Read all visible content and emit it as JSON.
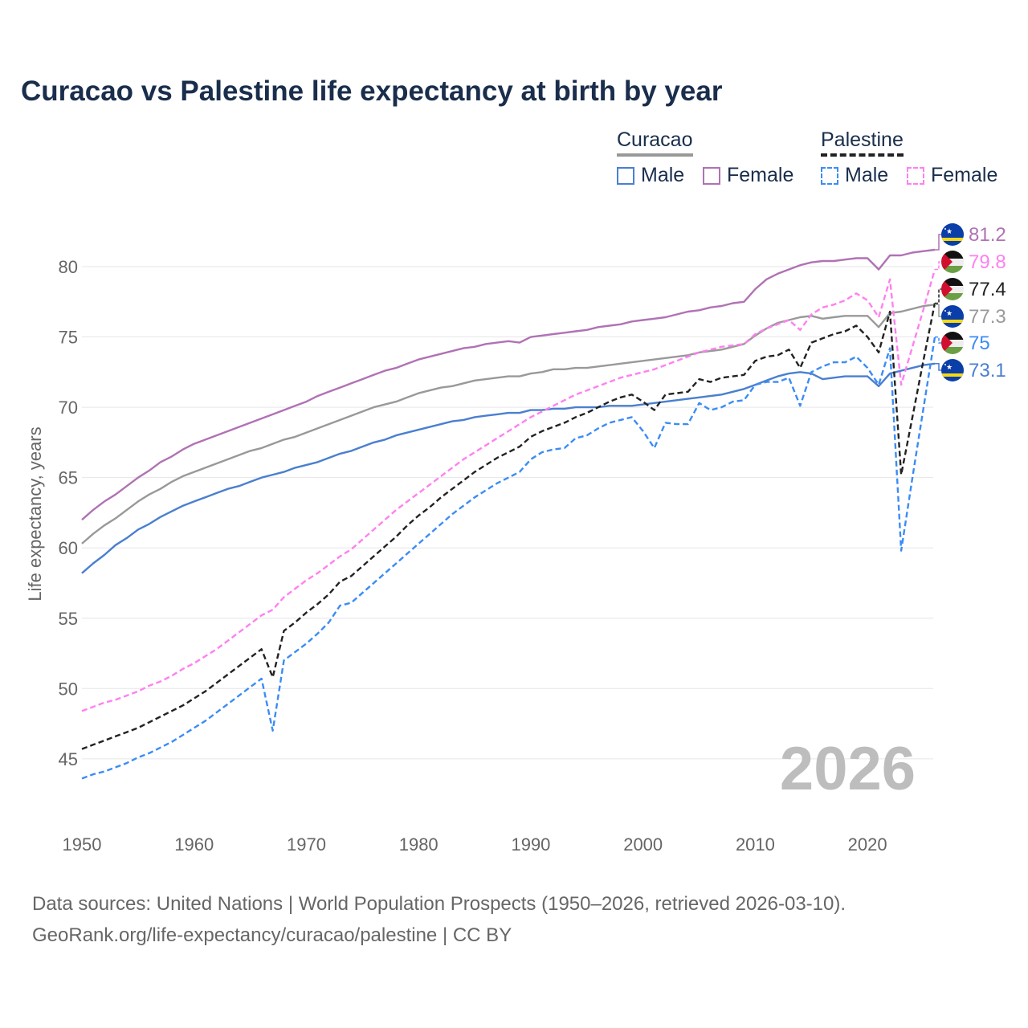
{
  "title": "Curacao vs Palestine life expectancy at birth by year",
  "legend": {
    "groups": [
      {
        "name": "Curacao",
        "color": "#999999",
        "items": [
          {
            "label": "Male",
            "color": "#4a7fd0"
          },
          {
            "label": "Female",
            "color": "#b072b4"
          }
        ]
      },
      {
        "name": "Palestine",
        "color": "#222222",
        "items": [
          {
            "label": "Male",
            "color": "#3b8cf5"
          },
          {
            "label": "Female",
            "color": "#ff80f0"
          }
        ]
      }
    ]
  },
  "footer": {
    "line1": "Data sources: United Nations | World Population Prospects (1950–2026, retrieved 2026-03-10).",
    "line2": "GeoRank.org/life-expectancy/curacao/palestine | CC BY"
  },
  "chart_data": {
    "type": "line",
    "title": "Curacao vs Palestine life expectancy at birth by year",
    "xlabel": "",
    "ylabel": "Life expectancy, years",
    "xlim": [
      1950,
      2026
    ],
    "ylim": [
      42,
      83
    ],
    "grid": true,
    "legend_position": "top-right",
    "current_year_label": "2026",
    "x_ticks": [
      "1950",
      "1960",
      "1970",
      "1980",
      "1990",
      "2000",
      "2010",
      "2020"
    ],
    "y_ticks": [
      "45",
      "50",
      "55",
      "60",
      "65",
      "70",
      "75",
      "80"
    ],
    "x_start": 1950,
    "series": [
      {
        "name": "Curacao Female",
        "color": "#b072b4",
        "dashed": false,
        "flag": "curacao-flag",
        "end_label": "81.2",
        "values": [
          62.0,
          62.7,
          63.3,
          63.8,
          64.4,
          65.0,
          65.5,
          66.1,
          66.5,
          67.0,
          67.4,
          67.7,
          68.0,
          68.3,
          68.6,
          68.9,
          69.2,
          69.5,
          69.8,
          70.1,
          70.4,
          70.8,
          71.1,
          71.4,
          71.7,
          72.0,
          72.3,
          72.6,
          72.8,
          73.1,
          73.4,
          73.6,
          73.8,
          74.0,
          74.2,
          74.3,
          74.5,
          74.6,
          74.7,
          74.6,
          75.0,
          75.1,
          75.2,
          75.3,
          75.4,
          75.5,
          75.7,
          75.8,
          75.9,
          76.1,
          76.2,
          76.3,
          76.4,
          76.6,
          76.8,
          76.9,
          77.1,
          77.2,
          77.4,
          77.5,
          78.4,
          79.1,
          79.5,
          79.8,
          80.1,
          80.3,
          80.4,
          80.4,
          80.5,
          80.6,
          80.6,
          79.8,
          80.8,
          80.8,
          81.0,
          81.1,
          81.2
        ]
      },
      {
        "name": "Palestine Female",
        "color": "#ff80f0",
        "dashed": true,
        "flag": "palestine-flag",
        "end_label": "79.8",
        "values": [
          48.4,
          48.7,
          49.0,
          49.2,
          49.5,
          49.8,
          50.2,
          50.5,
          50.9,
          51.4,
          51.8,
          52.3,
          52.8,
          53.4,
          54.0,
          54.6,
          55.2,
          55.6,
          56.5,
          57.1,
          57.7,
          58.2,
          58.8,
          59.4,
          59.9,
          60.6,
          61.3,
          62.0,
          62.7,
          63.3,
          63.9,
          64.5,
          65.1,
          65.7,
          66.3,
          66.8,
          67.3,
          67.8,
          68.3,
          68.8,
          69.3,
          69.7,
          70.1,
          70.5,
          70.9,
          71.2,
          71.5,
          71.8,
          72.1,
          72.3,
          72.5,
          72.7,
          73.0,
          73.3,
          73.6,
          73.9,
          74.1,
          74.3,
          74.4,
          74.5,
          75.2,
          75.6,
          75.9,
          76.2,
          75.5,
          76.6,
          77.1,
          77.3,
          77.6,
          78.1,
          77.6,
          76.4,
          79.1,
          71.6,
          74.3,
          77.0,
          79.8
        ]
      },
      {
        "name": "Palestine",
        "color": "#222222",
        "dashed": true,
        "flag": "palestine-flag",
        "end_label": "77.4",
        "values": [
          45.7,
          46.0,
          46.3,
          46.6,
          46.9,
          47.2,
          47.6,
          48.0,
          48.4,
          48.8,
          49.3,
          49.8,
          50.4,
          51.0,
          51.6,
          52.2,
          52.8,
          50.8,
          54.1,
          54.7,
          55.4,
          56.0,
          56.7,
          57.6,
          58.0,
          58.7,
          59.4,
          60.1,
          60.8,
          61.6,
          62.3,
          62.9,
          63.6,
          64.2,
          64.8,
          65.4,
          65.9,
          66.4,
          66.8,
          67.2,
          67.9,
          68.3,
          68.6,
          68.9,
          69.3,
          69.6,
          70.0,
          70.4,
          70.7,
          70.9,
          70.4,
          69.8,
          70.9,
          71.0,
          71.1,
          72.0,
          71.8,
          72.1,
          72.2,
          72.3,
          73.3,
          73.6,
          73.7,
          74.1,
          72.8,
          74.6,
          74.9,
          75.2,
          75.4,
          75.8,
          75.0,
          73.9,
          76.8,
          65.2,
          69.3,
          73.4,
          77.4
        ]
      },
      {
        "name": "Curacao",
        "color": "#999999",
        "dashed": false,
        "flag": "curacao-flag",
        "end_label": "77.3",
        "values": [
          60.3,
          61.0,
          61.6,
          62.1,
          62.7,
          63.3,
          63.8,
          64.2,
          64.7,
          65.1,
          65.4,
          65.7,
          66.0,
          66.3,
          66.6,
          66.9,
          67.1,
          67.4,
          67.7,
          67.9,
          68.2,
          68.5,
          68.8,
          69.1,
          69.4,
          69.7,
          70.0,
          70.2,
          70.4,
          70.7,
          71.0,
          71.2,
          71.4,
          71.5,
          71.7,
          71.9,
          72.0,
          72.1,
          72.2,
          72.2,
          72.4,
          72.5,
          72.7,
          72.7,
          72.8,
          72.8,
          72.9,
          73.0,
          73.1,
          73.2,
          73.3,
          73.4,
          73.5,
          73.6,
          73.7,
          73.9,
          74.0,
          74.1,
          74.3,
          74.5,
          75.1,
          75.6,
          76.0,
          76.2,
          76.4,
          76.5,
          76.3,
          76.4,
          76.5,
          76.5,
          76.5,
          75.7,
          76.7,
          76.8,
          77.0,
          77.2,
          77.3
        ]
      },
      {
        "name": "Palestine Male",
        "color": "#3b8cf5",
        "dashed": true,
        "flag": "palestine-flag",
        "end_label": "75",
        "values": [
          43.6,
          43.9,
          44.1,
          44.4,
          44.7,
          45.1,
          45.4,
          45.8,
          46.2,
          46.7,
          47.2,
          47.7,
          48.3,
          48.9,
          49.5,
          50.1,
          50.7,
          47.0,
          52.0,
          52.6,
          53.2,
          53.9,
          54.7,
          55.9,
          56.1,
          56.8,
          57.5,
          58.2,
          58.9,
          59.6,
          60.3,
          61.0,
          61.7,
          62.4,
          63.0,
          63.6,
          64.1,
          64.6,
          65.0,
          65.4,
          66.3,
          66.8,
          67.0,
          67.1,
          67.8,
          68.0,
          68.5,
          68.9,
          69.1,
          69.3,
          68.3,
          67.1,
          68.9,
          68.8,
          68.8,
          70.3,
          69.8,
          70.0,
          70.4,
          70.5,
          71.6,
          71.8,
          71.8,
          72.1,
          70.1,
          72.5,
          72.9,
          73.2,
          73.2,
          73.6,
          72.8,
          71.6,
          74.2,
          59.8,
          65.0,
          70.0,
          75.0
        ]
      },
      {
        "name": "Curacao Male",
        "color": "#4a7fd0",
        "dashed": false,
        "flag": "curacao-flag",
        "end_label": "73.1",
        "values": [
          58.2,
          58.9,
          59.5,
          60.2,
          60.7,
          61.3,
          61.7,
          62.2,
          62.6,
          63.0,
          63.3,
          63.6,
          63.9,
          64.2,
          64.4,
          64.7,
          65.0,
          65.2,
          65.4,
          65.7,
          65.9,
          66.1,
          66.4,
          66.7,
          66.9,
          67.2,
          67.5,
          67.7,
          68.0,
          68.2,
          68.4,
          68.6,
          68.8,
          69.0,
          69.1,
          69.3,
          69.4,
          69.5,
          69.6,
          69.6,
          69.8,
          69.8,
          69.9,
          69.9,
          70.0,
          70.0,
          70.0,
          70.1,
          70.1,
          70.1,
          70.2,
          70.3,
          70.4,
          70.5,
          70.6,
          70.7,
          70.8,
          70.9,
          71.1,
          71.3,
          71.6,
          71.9,
          72.2,
          72.4,
          72.5,
          72.4,
          72.0,
          72.1,
          72.2,
          72.2,
          72.2,
          71.5,
          72.4,
          72.6,
          72.8,
          73.0,
          73.1
        ]
      }
    ]
  }
}
